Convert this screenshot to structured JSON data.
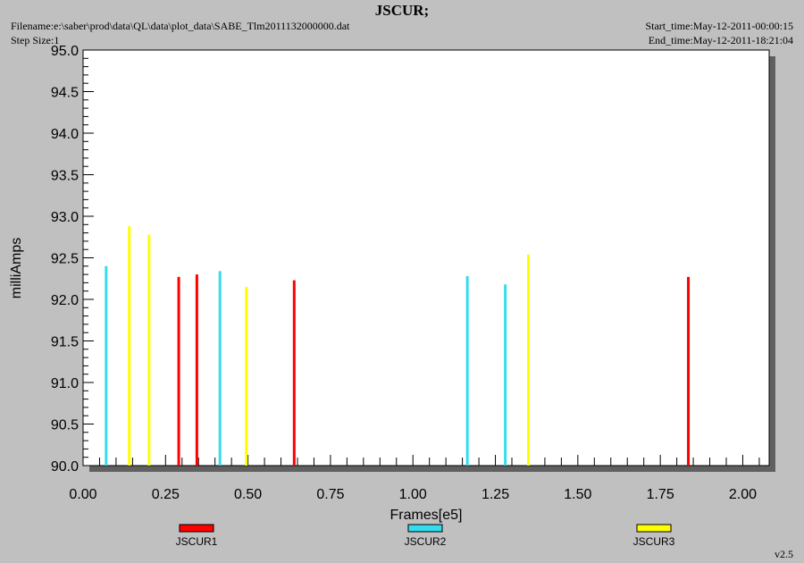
{
  "header": {
    "title": "JSCUR;",
    "filename": "Filename:e:\\saber\\prod\\data\\QL\\data\\plot_data\\SABE_Tlm2011132000000.dat",
    "step_size": "Step Size:1",
    "start_time": "Start_time:May-12-2011-00:00:15",
    "end_time": "End_time:May-12-2011-18:21:04"
  },
  "version": "v2.5",
  "colors": {
    "background": "#c0c0c0",
    "plot_bg": "#ffffff",
    "JSCUR1": "#ff0000",
    "JSCUR2": "#33ddee",
    "JSCUR3": "#ffff00"
  },
  "chart_data": {
    "type": "bar",
    "title": "JSCUR;",
    "xlabel": "Frames[e5]",
    "ylabel": "milliAmps",
    "xlim": [
      0.0,
      2.08
    ],
    "ylim": [
      90.0,
      95.0
    ],
    "x_ticks": [
      "0.00",
      "0.25",
      "0.50",
      "0.75",
      "1.00",
      "1.25",
      "1.50",
      "1.75",
      "2.00"
    ],
    "y_ticks": [
      "90.0",
      "90.5",
      "91.0",
      "91.5",
      "92.0",
      "92.5",
      "93.0",
      "93.5",
      "94.0",
      "94.5",
      "95.0"
    ],
    "legend_position": "bottom",
    "grid": false,
    "series": [
      {
        "name": "JSCUR1",
        "color": "#ff0000",
        "points": [
          {
            "x": 0.29,
            "y": 92.27
          },
          {
            "x": 0.345,
            "y": 92.3
          },
          {
            "x": 0.64,
            "y": 92.23
          },
          {
            "x": 1.835,
            "y": 92.27
          }
        ]
      },
      {
        "name": "JSCUR2",
        "color": "#33ddee",
        "points": [
          {
            "x": 0.07,
            "y": 92.4
          },
          {
            "x": 0.415,
            "y": 92.34
          },
          {
            "x": 1.165,
            "y": 92.28
          },
          {
            "x": 1.28,
            "y": 92.18
          }
        ]
      },
      {
        "name": "JSCUR3",
        "color": "#ffff00",
        "points": [
          {
            "x": 0.14,
            "y": 92.88
          },
          {
            "x": 0.2,
            "y": 92.78
          },
          {
            "x": 0.495,
            "y": 92.15
          },
          {
            "x": 1.35,
            "y": 92.54
          }
        ]
      }
    ]
  }
}
